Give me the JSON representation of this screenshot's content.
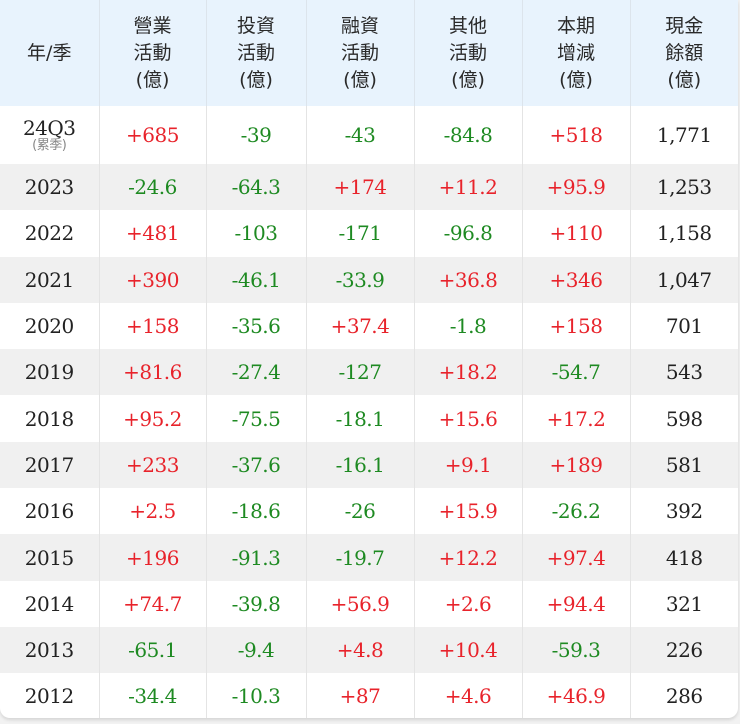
{
  "table": {
    "headers": [
      {
        "lines": [
          "年/季"
        ]
      },
      {
        "lines": [
          "營業",
          "活動",
          "(億)"
        ]
      },
      {
        "lines": [
          "投資",
          "活動",
          "(億)"
        ]
      },
      {
        "lines": [
          "融資",
          "活動",
          "(億)"
        ]
      },
      {
        "lines": [
          "其他",
          "活動",
          "(億)"
        ]
      },
      {
        "lines": [
          "本期",
          "增減",
          "(億)"
        ]
      },
      {
        "lines": [
          "現金",
          "餘額",
          "(億)"
        ]
      }
    ],
    "rows": [
      {
        "period": "24Q3",
        "period_note": "(累季)",
        "operating": "+685",
        "investing": "-39",
        "financing": "-43",
        "other": "-84.8",
        "net_change": "+518",
        "cash_balance": "1,771"
      },
      {
        "period": "2023",
        "operating": "-24.6",
        "investing": "-64.3",
        "financing": "+174",
        "other": "+11.2",
        "net_change": "+95.9",
        "cash_balance": "1,253"
      },
      {
        "period": "2022",
        "operating": "+481",
        "investing": "-103",
        "financing": "-171",
        "other": "-96.8",
        "net_change": "+110",
        "cash_balance": "1,158"
      },
      {
        "period": "2021",
        "operating": "+390",
        "investing": "-46.1",
        "financing": "-33.9",
        "other": "+36.8",
        "net_change": "+346",
        "cash_balance": "1,047"
      },
      {
        "period": "2020",
        "operating": "+158",
        "investing": "-35.6",
        "financing": "+37.4",
        "other": "-1.8",
        "net_change": "+158",
        "cash_balance": "701"
      },
      {
        "period": "2019",
        "operating": "+81.6",
        "investing": "-27.4",
        "financing": "-127",
        "other": "+18.2",
        "net_change": "-54.7",
        "cash_balance": "543"
      },
      {
        "period": "2018",
        "operating": "+95.2",
        "investing": "-75.5",
        "financing": "-18.1",
        "other": "+15.6",
        "net_change": "+17.2",
        "cash_balance": "598"
      },
      {
        "period": "2017",
        "operating": "+233",
        "investing": "-37.6",
        "financing": "-16.1",
        "other": "+9.1",
        "net_change": "+189",
        "cash_balance": "581"
      },
      {
        "period": "2016",
        "operating": "+2.5",
        "investing": "-18.6",
        "financing": "-26",
        "other": "+15.9",
        "net_change": "-26.2",
        "cash_balance": "392"
      },
      {
        "period": "2015",
        "operating": "+196",
        "investing": "-91.3",
        "financing": "-19.7",
        "other": "+12.2",
        "net_change": "+97.4",
        "cash_balance": "418"
      },
      {
        "period": "2014",
        "operating": "+74.7",
        "investing": "-39.8",
        "financing": "+56.9",
        "other": "+2.6",
        "net_change": "+94.4",
        "cash_balance": "321"
      },
      {
        "period": "2013",
        "operating": "-65.1",
        "investing": "-9.4",
        "financing": "+4.8",
        "other": "+10.4",
        "net_change": "-59.3",
        "cash_balance": "226"
      },
      {
        "period": "2012",
        "operating": "-34.4",
        "investing": "-10.3",
        "financing": "+87",
        "other": "+4.6",
        "net_change": "+46.9",
        "cash_balance": "286"
      }
    ]
  },
  "colors": {
    "positive": "#e8232b",
    "negative": "#1e8a22",
    "header_bg": "#e8f3fd",
    "stripe_bg": "#f0f0f0"
  }
}
